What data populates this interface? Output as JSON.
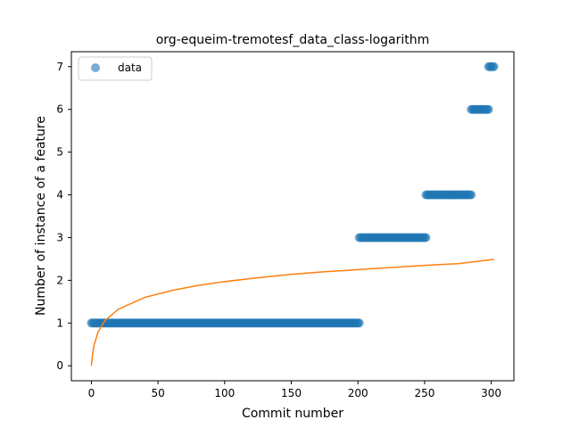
{
  "chart_data": {
    "type": "scatter",
    "title": "org-equeim-tremotesf_data_class-logarithm",
    "xlabel": "Commit number",
    "ylabel": "Number of instance of a feature",
    "xlim": [
      -15,
      317
    ],
    "ylim": [
      -0.35,
      7.35
    ],
    "xticks": [
      0,
      50,
      100,
      150,
      200,
      250,
      300
    ],
    "yticks": [
      0,
      1,
      2,
      3,
      4,
      5,
      6,
      7
    ],
    "grid": false,
    "legend": {
      "position": "top-left",
      "entries": [
        "data"
      ]
    },
    "colors": {
      "data": "#1f77b4",
      "fit": "#ff7f0e"
    },
    "series": [
      {
        "name": "data",
        "kind": "scatter",
        "segments": [
          {
            "x_start": 0,
            "x_end": 201,
            "y": 1
          },
          {
            "x_start": 201,
            "x_end": 251,
            "y": 3
          },
          {
            "x_start": 251,
            "x_end": 285,
            "y": 4
          },
          {
            "x_start": 285,
            "x_end": 298,
            "y": 6
          },
          {
            "x_start": 298,
            "x_end": 302,
            "y": 7
          }
        ]
      },
      {
        "kind": "line",
        "x": [
          0,
          1,
          2,
          5,
          10,
          20,
          40,
          60,
          80,
          100,
          125,
          150,
          175,
          200,
          225,
          250,
          275,
          302
        ],
        "y": [
          0.0,
          0.3,
          0.48,
          0.79,
          1.05,
          1.32,
          1.6,
          1.76,
          1.88,
          1.97,
          2.06,
          2.14,
          2.2,
          2.25,
          2.3,
          2.35,
          2.39,
          2.49
        ]
      }
    ]
  }
}
